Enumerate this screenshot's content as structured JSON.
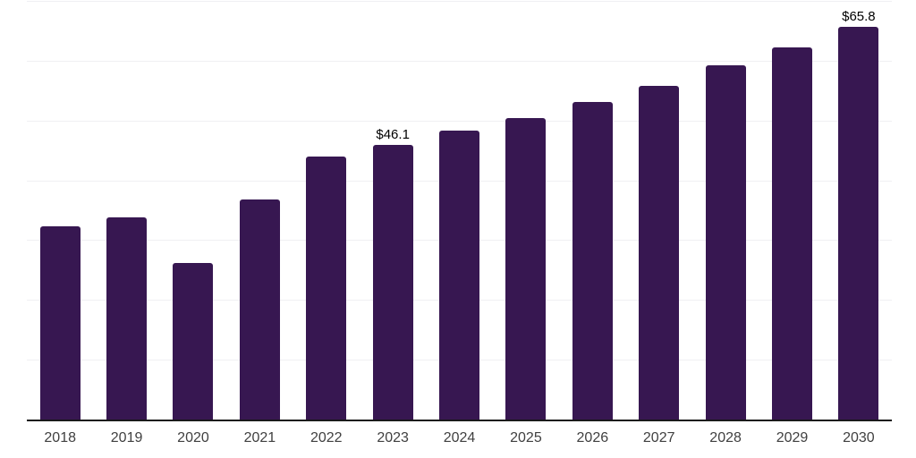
{
  "chart_data": {
    "type": "bar",
    "title": "",
    "xlabel": "",
    "ylabel": "",
    "categories": [
      "2018",
      "2019",
      "2020",
      "2021",
      "2022",
      "2023",
      "2024",
      "2025",
      "2026",
      "2027",
      "2028",
      "2029",
      "2030"
    ],
    "values": [
      32.4,
      34.0,
      26.3,
      36.9,
      44.2,
      46.1,
      48.5,
      50.6,
      53.2,
      55.9,
      59.4,
      62.4,
      65.8
    ],
    "bar_labels": [
      null,
      null,
      null,
      null,
      null,
      "$46.1",
      null,
      null,
      null,
      null,
      null,
      null,
      "$65.8"
    ],
    "ylim": [
      0,
      70
    ],
    "gridline_step": 10,
    "grid": true,
    "legend_position": "none",
    "colors": {
      "bar": "#371751",
      "axis_line": "#1a1a1a",
      "gridline": "#f0f0f3",
      "value_label": "#000000",
      "tick_label": "#404040",
      "background": "#ffffff"
    }
  }
}
